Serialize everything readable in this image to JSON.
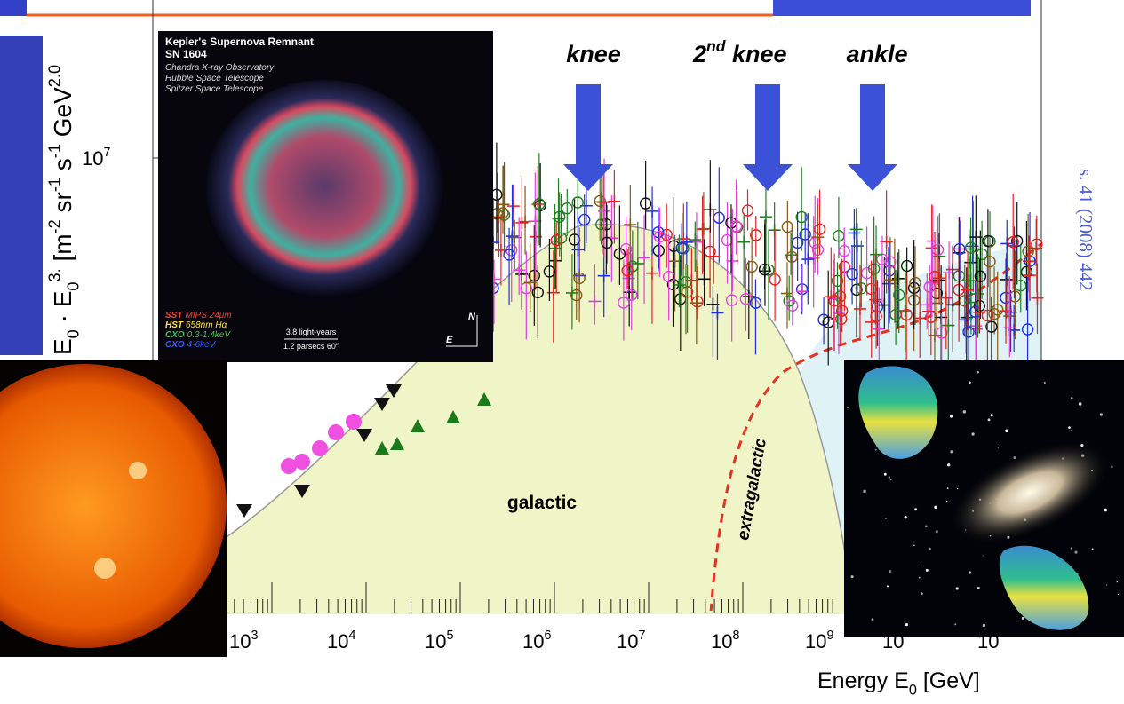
{
  "slide": {
    "annotations": {
      "knee": "knee",
      "second_knee": [
        {
          "t": "2"
        },
        {
          "sup": "nd"
        },
        {
          "t": " knee"
        }
      ],
      "ankle": "ankle",
      "galactic": "galactic",
      "extragalactic": "extragalactic"
    },
    "x_axis": {
      "title": [
        {
          "t": "Energy E"
        },
        {
          "sub": "0"
        },
        {
          "t": " [GeV]"
        }
      ],
      "ticks": [
        [
          {
            "t": "10"
          },
          {
            "sup": "3"
          }
        ],
        [
          {
            "t": "10"
          },
          {
            "sup": "4"
          }
        ],
        [
          {
            "t": "10"
          },
          {
            "sup": "5"
          }
        ],
        [
          {
            "t": "10"
          },
          {
            "sup": "6"
          }
        ],
        [
          {
            "t": "10"
          },
          {
            "sup": "7"
          }
        ],
        [
          {
            "t": "10"
          },
          {
            "sup": "8"
          }
        ],
        [
          {
            "t": "10"
          },
          {
            "sup": "9"
          }
        ],
        [
          {
            "t": "10"
          }
        ],
        [
          {
            "t": "10"
          }
        ]
      ]
    },
    "y_axis": {
      "tick": [
        {
          "t": "10"
        },
        {
          "sup": "7"
        }
      ],
      "title": [
        {
          "t": "E"
        },
        {
          "sub": "0"
        },
        {
          "t": " · E"
        },
        {
          "sub": "0"
        },
        {
          "sup": "3."
        },
        {
          "t": " [m"
        },
        {
          "sup": "-2"
        },
        {
          "t": " sr"
        },
        {
          "sup": "-1"
        },
        {
          "t": " s"
        },
        {
          "sup": "-1"
        },
        {
          "t": " GeV"
        },
        {
          "sup": "2.0"
        }
      ]
    },
    "citation": "s. 41 (2008) 442",
    "kepler_image": {
      "title": "Kepler's Supernova Remnant",
      "subtitle": "SN 1604",
      "observatories": [
        "Chandra X-ray Observatory",
        "Hubble Space Telescope",
        "Spitzer Space Telescope"
      ],
      "legend": [
        {
          "instrument": "SST",
          "band": "MIPS 24μm",
          "color": "#ff3b30"
        },
        {
          "instrument": "HST",
          "band": "658nm Hα",
          "color": "#ffe14a"
        },
        {
          "instrument": "CXO",
          "band": "0.3-1.4keV",
          "color": "#44c04a"
        },
        {
          "instrument": "CXO",
          "band": "4-6keV",
          "color": "#3b5bff"
        }
      ],
      "scale": [
        "3.8 light-years",
        "1.2 parsecs 60″"
      ],
      "compass": [
        "N",
        "E"
      ]
    }
  }
}
